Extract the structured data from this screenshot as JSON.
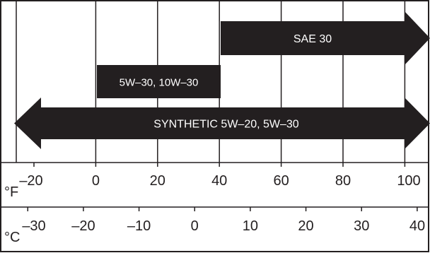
{
  "chart_data": {
    "type": "range-arrow-chart",
    "fahrenheit_axis": {
      "unit": "°F",
      "ticks": [
        -20,
        0,
        20,
        40,
        60,
        80,
        100
      ],
      "tick_labels": [
        "–20",
        "0",
        "20",
        "40",
        "60",
        "80",
        "100"
      ]
    },
    "celsius_axis": {
      "unit": "°C",
      "ticks": [
        -30,
        -20,
        -10,
        0,
        10,
        20,
        30,
        40
      ],
      "tick_labels": [
        "–30",
        "–20",
        "–10",
        "0",
        "10",
        "20",
        "30",
        "40"
      ]
    },
    "ranges": [
      {
        "label": "SAE 30",
        "from_f": 42,
        "to_f": 100,
        "open_low": false,
        "open_high": true
      },
      {
        "label": "5W–30, 10W–30",
        "from_f": 0,
        "to_f": 40,
        "open_low": false,
        "open_high": false
      },
      {
        "label": "SYNTHETIC 5W–20, 5W–30",
        "from_f": -20,
        "to_f": 100,
        "open_low": true,
        "open_high": true
      }
    ],
    "grid": true,
    "colors": {
      "band": "#231f20",
      "band_text": "#ffffff",
      "line": "#231f20",
      "background": "#ffffff"
    }
  }
}
